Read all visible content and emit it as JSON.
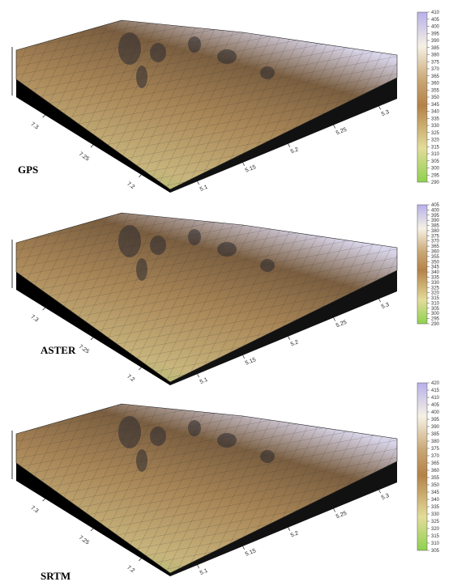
{
  "chart_data": [
    {
      "type": "surface",
      "label": "GPS",
      "xlim": [
        5.07,
        5.32
      ],
      "xticks": [
        5.1,
        5.15,
        5.2,
        5.25,
        5.3
      ],
      "ylim": [
        7.17,
        7.33
      ],
      "yticks": [
        7.2,
        7.25,
        7.3
      ],
      "colorbar": {
        "lim": [
          290,
          410
        ],
        "ticks": [
          410,
          405,
          400,
          395,
          390,
          385,
          380,
          375,
          370,
          365,
          360,
          355,
          350,
          345,
          340,
          335,
          330,
          325,
          320,
          315,
          310,
          305,
          300,
          295,
          290
        ]
      }
    },
    {
      "type": "surface",
      "label": "ASTER",
      "xlim": [
        5.07,
        5.32
      ],
      "xticks": [
        5.1,
        5.15,
        5.2,
        5.25,
        5.3
      ],
      "ylim": [
        7.17,
        7.33
      ],
      "yticks": [
        7.2,
        7.25,
        7.3
      ],
      "colorbar": {
        "lim": [
          290,
          405
        ],
        "ticks": [
          405,
          400,
          395,
          390,
          385,
          380,
          375,
          370,
          365,
          360,
          355,
          350,
          345,
          340,
          335,
          330,
          325,
          320,
          315,
          310,
          305,
          300,
          295,
          290
        ]
      }
    },
    {
      "type": "surface",
      "label": "SRTM",
      "xlim": [
        5.07,
        5.32
      ],
      "xticks": [
        5.1,
        5.15,
        5.2,
        5.25,
        5.3
      ],
      "ylim": [
        7.17,
        7.33
      ],
      "yticks": [
        7.2,
        7.25,
        7.3
      ],
      "colorbar": {
        "lim": [
          305,
          420
        ],
        "ticks": [
          420,
          415,
          410,
          405,
          400,
          395,
          390,
          385,
          380,
          375,
          370,
          365,
          360,
          355,
          350,
          345,
          340,
          335,
          330,
          325,
          320,
          315,
          310,
          305
        ]
      }
    }
  ]
}
